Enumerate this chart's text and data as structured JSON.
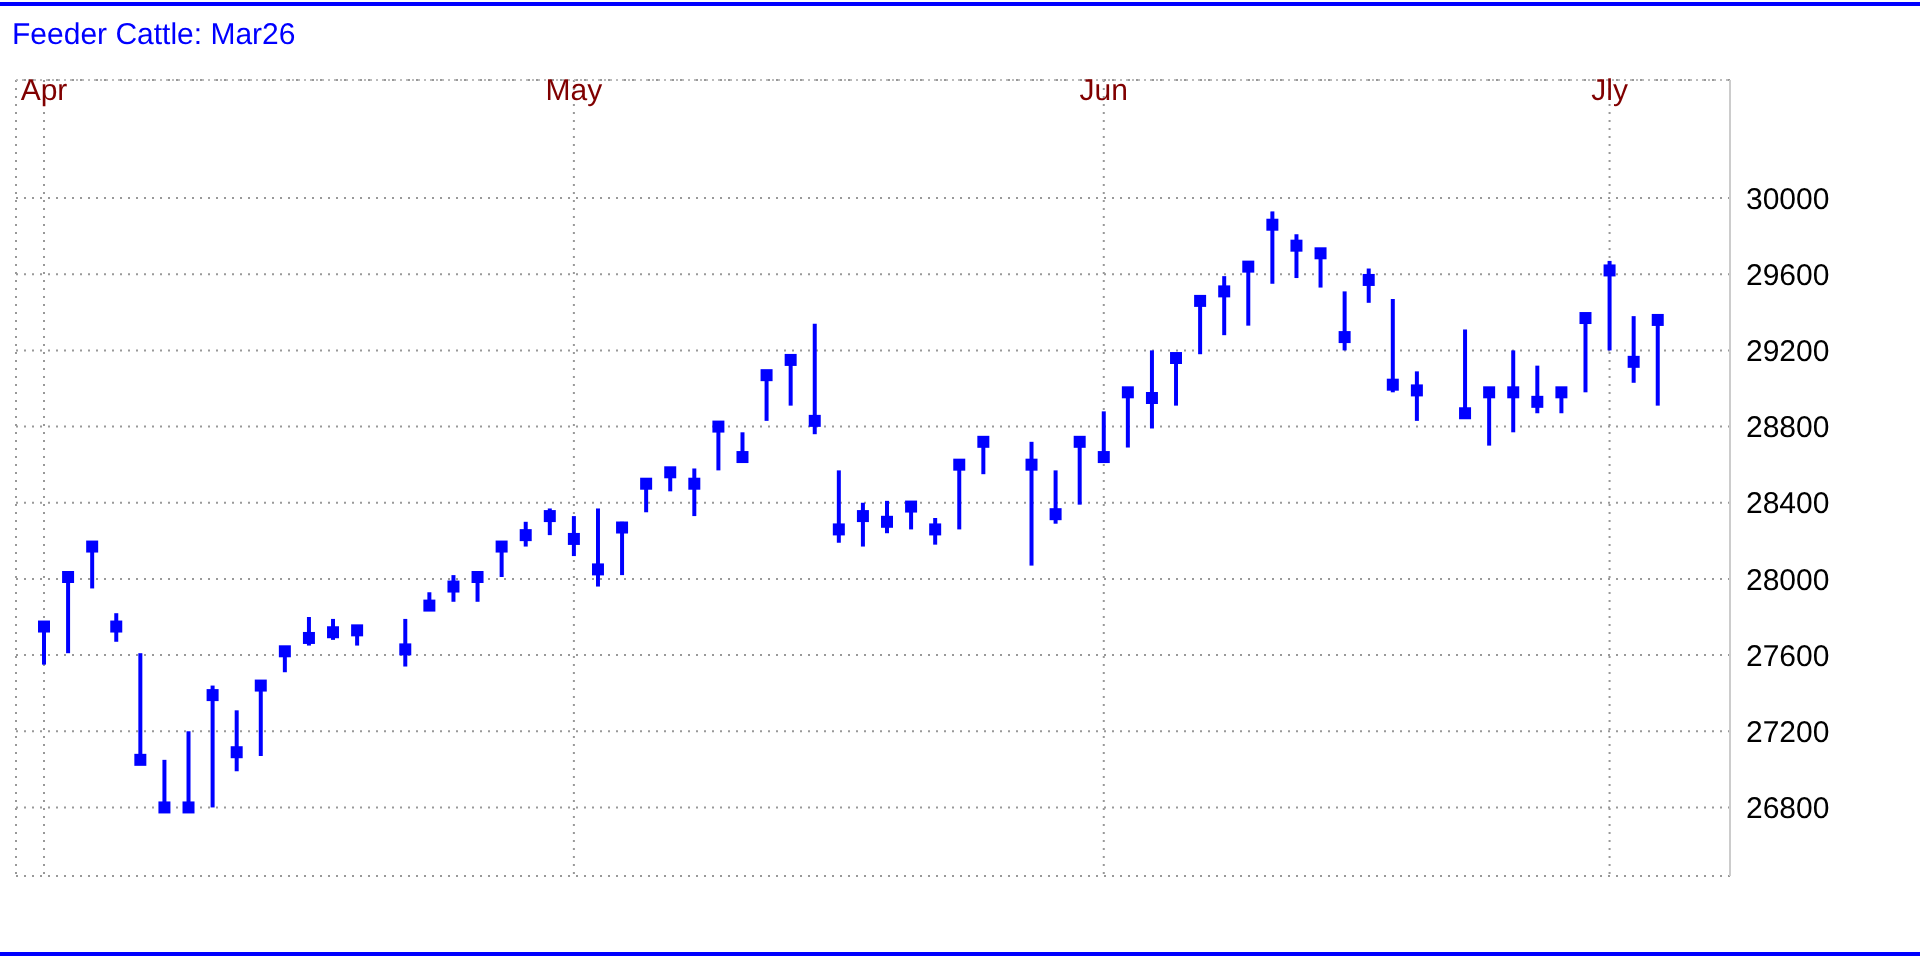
{
  "chart_data": {
    "type": "scatter",
    "title": "Feeder Cattle: Mar26",
    "grid": true,
    "marker": "square",
    "ylim": [
      26440,
      30620
    ],
    "yticks": [
      26800,
      27200,
      27600,
      28000,
      28400,
      28800,
      29200,
      29600,
      30000
    ],
    "categories": [
      "Apr",
      null,
      null,
      null,
      null,
      null,
      null,
      null,
      null,
      null,
      null,
      null,
      null,
      null,
      null,
      null,
      null,
      null,
      null,
      null,
      null,
      null,
      "May",
      null,
      null,
      null,
      null,
      null,
      null,
      null,
      null,
      null,
      null,
      null,
      null,
      null,
      null,
      null,
      null,
      null,
      null,
      null,
      null,
      null,
      "Jun",
      null,
      null,
      null,
      null,
      null,
      null,
      null,
      null,
      null,
      null,
      null,
      null,
      null,
      null,
      null,
      null,
      null,
      null,
      null,
      null,
      "Jly",
      null,
      null,
      null,
      null,
      null
    ],
    "series": [
      {
        "color": "#0000ff",
        "values": [
          27750,
          28010,
          28170,
          27750,
          27050,
          26800,
          26800,
          27390,
          27090,
          27440,
          27620,
          27690,
          27720,
          27730,
          null,
          27630,
          27860,
          27960,
          28010,
          28170,
          28230,
          28330,
          28210,
          28050,
          28270,
          28500,
          28560,
          28500,
          28800,
          28640,
          29070,
          29150,
          28830,
          28260,
          28330,
          28300,
          28380,
          28260,
          28600,
          28720,
          null,
          28600,
          28340,
          28720,
          28640,
          28980,
          28950,
          29160,
          29460,
          29510,
          29640,
          29860,
          29750,
          29710,
          29270,
          29570,
          29020,
          28990,
          null,
          28870,
          28980,
          28980,
          28930,
          28980,
          29370,
          29620,
          29140,
          29360,
          null,
          null,
          null
        ],
        "errors": [
          [
            27550,
            27750
          ],
          [
            27610,
            28010
          ],
          [
            27950,
            28170
          ],
          [
            27670,
            27820
          ],
          [
            27050,
            27610
          ],
          [
            26800,
            27050
          ],
          [
            26800,
            27200
          ],
          [
            26800,
            27440
          ],
          [
            26990,
            27310
          ],
          [
            27070,
            27460
          ],
          [
            27510,
            27620
          ],
          [
            27650,
            27800
          ],
          [
            27680,
            27790
          ],
          [
            27650,
            27730
          ],
          null,
          [
            27540,
            27790
          ],
          [
            27840,
            27930
          ],
          [
            27880,
            28020
          ],
          [
            27880,
            28040
          ],
          [
            28010,
            28170
          ],
          [
            28170,
            28300
          ],
          [
            28230,
            28370
          ],
          [
            28120,
            28330
          ],
          [
            27960,
            28370
          ],
          [
            28020,
            28300
          ],
          [
            28350,
            28500
          ],
          [
            28460,
            28570
          ],
          [
            28330,
            28580
          ],
          [
            28570,
            28800
          ],
          [
            28620,
            28770
          ],
          [
            28830,
            29090
          ],
          [
            28910,
            29170
          ],
          [
            28760,
            29340
          ],
          [
            28190,
            28570
          ],
          [
            28170,
            28400
          ],
          [
            28240,
            28410
          ],
          [
            28260,
            28380
          ],
          [
            28180,
            28320
          ],
          [
            28260,
            28600
          ],
          [
            28550,
            28750
          ],
          null,
          [
            28070,
            28720
          ],
          [
            28290,
            28570
          ],
          [
            28390,
            28720
          ],
          [
            28620,
            28880
          ],
          [
            28690,
            28980
          ],
          [
            28790,
            29200
          ],
          [
            28910,
            29170
          ],
          [
            29180,
            29470
          ],
          [
            29280,
            29590
          ],
          [
            29330,
            29640
          ],
          [
            29550,
            29930
          ],
          [
            29580,
            29810
          ],
          [
            29530,
            29720
          ],
          [
            29200,
            29510
          ],
          [
            29450,
            29630
          ],
          [
            28980,
            29470
          ],
          [
            28830,
            29090
          ],
          null,
          [
            28850,
            29310
          ],
          [
            28700,
            28980
          ],
          [
            28770,
            29200
          ],
          [
            28870,
            29120
          ],
          [
            28870,
            29000
          ],
          [
            28980,
            29370
          ],
          [
            29200,
            29670
          ],
          [
            29030,
            29380
          ],
          [
            28910,
            29380
          ],
          null,
          null,
          null
        ]
      }
    ]
  }
}
